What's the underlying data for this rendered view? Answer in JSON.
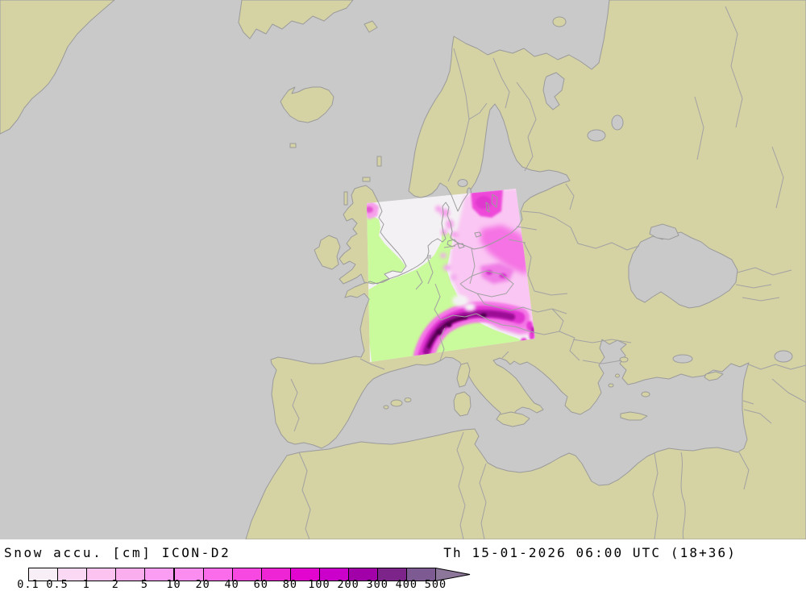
{
  "footer": {
    "left_title": "Snow accu. [cm] ICON-D2",
    "right_title": "Th 15-01-2026 06:00 UTC (18+36)"
  },
  "legend": {
    "unit": "cm",
    "tick_labels": [
      "0.1",
      "0.5",
      "1",
      "2",
      "5",
      "10",
      "20",
      "40",
      "60",
      "80",
      "100",
      "200",
      "300",
      "400",
      "500"
    ],
    "segment_colors": [
      "#f7eef6",
      "#fbd9f5",
      "#fcc3f1",
      "#fbaeee",
      "#fb9df2",
      "#fb8cf0",
      "#fa6ce9",
      "#f748e1",
      "#ee25d4",
      "#e204cf",
      "#cb00cb",
      "#a201a9",
      "#7c2489",
      "#7d5a92"
    ],
    "arrow_color": "#8c7699"
  },
  "map": {
    "model_domain": "ICON-D2",
    "sea_color": "#c9c9c9",
    "land_color": "#d5d2a4",
    "coast_color": "#9b9b9b",
    "country_border_color": "#a2a2a2",
    "domain_colors": {
      "background_no_data": "#f4f1f4",
      "snow_free_land": "#c9fa9b",
      "light_snow": "#fac6f3",
      "moderate_snow": "#f573e4",
      "heavy_snow": "#e136d2",
      "intense_snow_alps": "#9c0a96",
      "extreme_snow_alps": "#55034f",
      "sweden_patch": "#ee49d9"
    }
  }
}
